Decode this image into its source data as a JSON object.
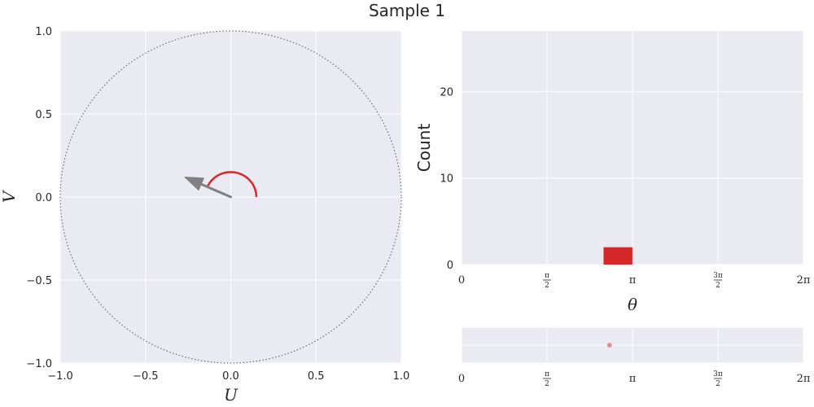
{
  "title": "Sample 1",
  "colors": {
    "panel_bg": "#eaeaf2",
    "grid": "#ffffff",
    "text": "#262626",
    "arrow": "#808080",
    "arc": "#d62728",
    "bar": "#d62728",
    "point": "#ef8f8f",
    "unit_circle": "#6e6e6e"
  },
  "chart_data": [
    {
      "type": "scatter",
      "description_role": "vector-plot",
      "xlabel": "U",
      "ylabel": "V",
      "xlim": [
        -1.0,
        1.0
      ],
      "ylim": [
        -1.0,
        1.0
      ],
      "x_ticks": [
        -1.0,
        -0.5,
        0.0,
        0.5,
        1.0
      ],
      "y_ticks": [
        -1.0,
        -0.5,
        0.0,
        0.5,
        1.0
      ],
      "x_tick_labels": [
        "−1.0",
        "−0.5",
        "0.0",
        "0.5",
        "1.0"
      ],
      "y_tick_labels": [
        "−1.0",
        "−0.5",
        "0.0",
        "0.5",
        "1.0"
      ],
      "grid": true,
      "unit_circle_radius": 1.0,
      "arrow": {
        "x0": 0.0,
        "y0": 0.0,
        "x1": -0.27,
        "y1": 0.12
      },
      "angle_arc": {
        "radius": 0.15,
        "start_rad": 0.0,
        "end_rad": 2.72
      }
    },
    {
      "type": "bar",
      "description_role": "angle-histogram",
      "xlabel": "θ",
      "ylabel": "Count",
      "xlim": [
        0,
        6.283185
      ],
      "ylim": [
        0,
        27
      ],
      "y_ticks": [
        0,
        10,
        20
      ],
      "y_tick_labels": [
        "0",
        "10",
        "20"
      ],
      "x_tick_labels": [
        "0",
        "π/2",
        "π",
        "3π/2",
        "2π"
      ],
      "grid": true,
      "bars": [
        {
          "x_start": 2.61,
          "x_end": 3.14,
          "count": 2
        }
      ]
    },
    {
      "type": "scatter",
      "description_role": "angle-strip",
      "xlim": [
        0,
        6.283185
      ],
      "ylim": [
        -1,
        1
      ],
      "x_tick_labels": [
        "0",
        "π/2",
        "π",
        "3π/2",
        "2π"
      ],
      "grid": true,
      "points": [
        {
          "x": 2.72,
          "y": 0.0
        }
      ]
    }
  ]
}
